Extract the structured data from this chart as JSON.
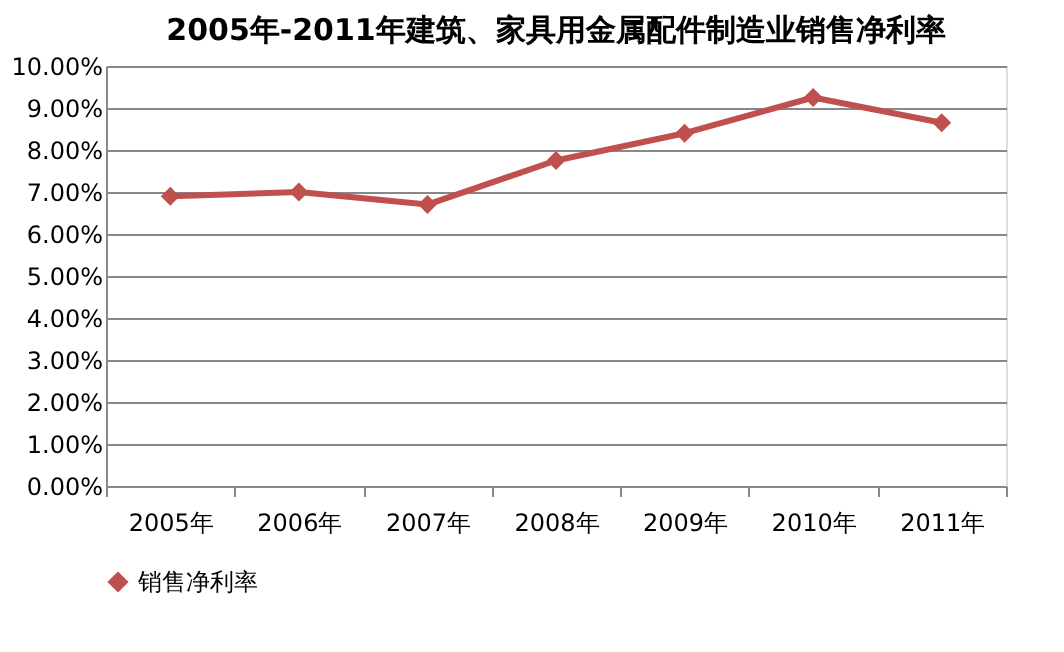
{
  "chart_data": {
    "type": "line",
    "title": "2005年-2011年建筑、家具用金属配件制造业销售净利率",
    "categories": [
      "2005年",
      "2006年",
      "2007年",
      "2008年",
      "2009年",
      "2010年",
      "2011年"
    ],
    "series": [
      {
        "name": "销售净利率",
        "color": "#c0504d",
        "values": [
          6.9,
          7.0,
          6.7,
          7.75,
          8.4,
          9.25,
          8.65
        ]
      }
    ],
    "ylim": [
      0,
      10
    ],
    "yticks": [
      {
        "value": 0,
        "label": "0.00%"
      },
      {
        "value": 1,
        "label": "1.00%"
      },
      {
        "value": 2,
        "label": "2.00%"
      },
      {
        "value": 3,
        "label": "3.00%"
      },
      {
        "value": 4,
        "label": "4.00%"
      },
      {
        "value": 5,
        "label": "5.00%"
      },
      {
        "value": 6,
        "label": "6.00%"
      },
      {
        "value": 7,
        "label": "7.00%"
      },
      {
        "value": 8,
        "label": "8.00%"
      },
      {
        "value": 9,
        "label": "9.00%"
      },
      {
        "value": 10,
        "label": "10.00%"
      }
    ],
    "grid": "y",
    "legend": "bottom",
    "marker": "diamond",
    "line_style": "solid"
  }
}
